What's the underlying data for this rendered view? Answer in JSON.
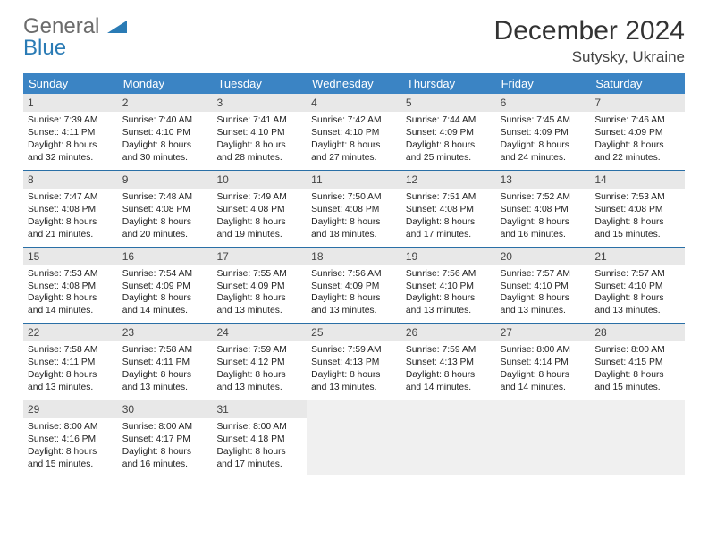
{
  "logo": {
    "word1": "General",
    "word2": "Blue"
  },
  "title": {
    "month": "December 2024",
    "location": "Sutysky, Ukraine"
  },
  "colors": {
    "header_bg": "#3b84c4",
    "header_text": "#ffffff",
    "daynum_bg": "#e8e8e8",
    "week_border": "#2a6fa6",
    "logo_gray": "#6b6b6b",
    "logo_blue": "#2a7bb5"
  },
  "day_headers": [
    "Sunday",
    "Monday",
    "Tuesday",
    "Wednesday",
    "Thursday",
    "Friday",
    "Saturday"
  ],
  "weeks": [
    [
      {
        "n": "1",
        "sr": "Sunrise: 7:39 AM",
        "ss": "Sunset: 4:11 PM",
        "d1": "Daylight: 8 hours",
        "d2": "and 32 minutes."
      },
      {
        "n": "2",
        "sr": "Sunrise: 7:40 AM",
        "ss": "Sunset: 4:10 PM",
        "d1": "Daylight: 8 hours",
        "d2": "and 30 minutes."
      },
      {
        "n": "3",
        "sr": "Sunrise: 7:41 AM",
        "ss": "Sunset: 4:10 PM",
        "d1": "Daylight: 8 hours",
        "d2": "and 28 minutes."
      },
      {
        "n": "4",
        "sr": "Sunrise: 7:42 AM",
        "ss": "Sunset: 4:10 PM",
        "d1": "Daylight: 8 hours",
        "d2": "and 27 minutes."
      },
      {
        "n": "5",
        "sr": "Sunrise: 7:44 AM",
        "ss": "Sunset: 4:09 PM",
        "d1": "Daylight: 8 hours",
        "d2": "and 25 minutes."
      },
      {
        "n": "6",
        "sr": "Sunrise: 7:45 AM",
        "ss": "Sunset: 4:09 PM",
        "d1": "Daylight: 8 hours",
        "d2": "and 24 minutes."
      },
      {
        "n": "7",
        "sr": "Sunrise: 7:46 AM",
        "ss": "Sunset: 4:09 PM",
        "d1": "Daylight: 8 hours",
        "d2": "and 22 minutes."
      }
    ],
    [
      {
        "n": "8",
        "sr": "Sunrise: 7:47 AM",
        "ss": "Sunset: 4:08 PM",
        "d1": "Daylight: 8 hours",
        "d2": "and 21 minutes."
      },
      {
        "n": "9",
        "sr": "Sunrise: 7:48 AM",
        "ss": "Sunset: 4:08 PM",
        "d1": "Daylight: 8 hours",
        "d2": "and 20 minutes."
      },
      {
        "n": "10",
        "sr": "Sunrise: 7:49 AM",
        "ss": "Sunset: 4:08 PM",
        "d1": "Daylight: 8 hours",
        "d2": "and 19 minutes."
      },
      {
        "n": "11",
        "sr": "Sunrise: 7:50 AM",
        "ss": "Sunset: 4:08 PM",
        "d1": "Daylight: 8 hours",
        "d2": "and 18 minutes."
      },
      {
        "n": "12",
        "sr": "Sunrise: 7:51 AM",
        "ss": "Sunset: 4:08 PM",
        "d1": "Daylight: 8 hours",
        "d2": "and 17 minutes."
      },
      {
        "n": "13",
        "sr": "Sunrise: 7:52 AM",
        "ss": "Sunset: 4:08 PM",
        "d1": "Daylight: 8 hours",
        "d2": "and 16 minutes."
      },
      {
        "n": "14",
        "sr": "Sunrise: 7:53 AM",
        "ss": "Sunset: 4:08 PM",
        "d1": "Daylight: 8 hours",
        "d2": "and 15 minutes."
      }
    ],
    [
      {
        "n": "15",
        "sr": "Sunrise: 7:53 AM",
        "ss": "Sunset: 4:08 PM",
        "d1": "Daylight: 8 hours",
        "d2": "and 14 minutes."
      },
      {
        "n": "16",
        "sr": "Sunrise: 7:54 AM",
        "ss": "Sunset: 4:09 PM",
        "d1": "Daylight: 8 hours",
        "d2": "and 14 minutes."
      },
      {
        "n": "17",
        "sr": "Sunrise: 7:55 AM",
        "ss": "Sunset: 4:09 PM",
        "d1": "Daylight: 8 hours",
        "d2": "and 13 minutes."
      },
      {
        "n": "18",
        "sr": "Sunrise: 7:56 AM",
        "ss": "Sunset: 4:09 PM",
        "d1": "Daylight: 8 hours",
        "d2": "and 13 minutes."
      },
      {
        "n": "19",
        "sr": "Sunrise: 7:56 AM",
        "ss": "Sunset: 4:10 PM",
        "d1": "Daylight: 8 hours",
        "d2": "and 13 minutes."
      },
      {
        "n": "20",
        "sr": "Sunrise: 7:57 AM",
        "ss": "Sunset: 4:10 PM",
        "d1": "Daylight: 8 hours",
        "d2": "and 13 minutes."
      },
      {
        "n": "21",
        "sr": "Sunrise: 7:57 AM",
        "ss": "Sunset: 4:10 PM",
        "d1": "Daylight: 8 hours",
        "d2": "and 13 minutes."
      }
    ],
    [
      {
        "n": "22",
        "sr": "Sunrise: 7:58 AM",
        "ss": "Sunset: 4:11 PM",
        "d1": "Daylight: 8 hours",
        "d2": "and 13 minutes."
      },
      {
        "n": "23",
        "sr": "Sunrise: 7:58 AM",
        "ss": "Sunset: 4:11 PM",
        "d1": "Daylight: 8 hours",
        "d2": "and 13 minutes."
      },
      {
        "n": "24",
        "sr": "Sunrise: 7:59 AM",
        "ss": "Sunset: 4:12 PM",
        "d1": "Daylight: 8 hours",
        "d2": "and 13 minutes."
      },
      {
        "n": "25",
        "sr": "Sunrise: 7:59 AM",
        "ss": "Sunset: 4:13 PM",
        "d1": "Daylight: 8 hours",
        "d2": "and 13 minutes."
      },
      {
        "n": "26",
        "sr": "Sunrise: 7:59 AM",
        "ss": "Sunset: 4:13 PM",
        "d1": "Daylight: 8 hours",
        "d2": "and 14 minutes."
      },
      {
        "n": "27",
        "sr": "Sunrise: 8:00 AM",
        "ss": "Sunset: 4:14 PM",
        "d1": "Daylight: 8 hours",
        "d2": "and 14 minutes."
      },
      {
        "n": "28",
        "sr": "Sunrise: 8:00 AM",
        "ss": "Sunset: 4:15 PM",
        "d1": "Daylight: 8 hours",
        "d2": "and 15 minutes."
      }
    ],
    [
      {
        "n": "29",
        "sr": "Sunrise: 8:00 AM",
        "ss": "Sunset: 4:16 PM",
        "d1": "Daylight: 8 hours",
        "d2": "and 15 minutes."
      },
      {
        "n": "30",
        "sr": "Sunrise: 8:00 AM",
        "ss": "Sunset: 4:17 PM",
        "d1": "Daylight: 8 hours",
        "d2": "and 16 minutes."
      },
      {
        "n": "31",
        "sr": "Sunrise: 8:00 AM",
        "ss": "Sunset: 4:18 PM",
        "d1": "Daylight: 8 hours",
        "d2": "and 17 minutes."
      },
      {
        "blank": true
      },
      {
        "blank": true
      },
      {
        "blank": true
      },
      {
        "blank": true
      }
    ]
  ]
}
